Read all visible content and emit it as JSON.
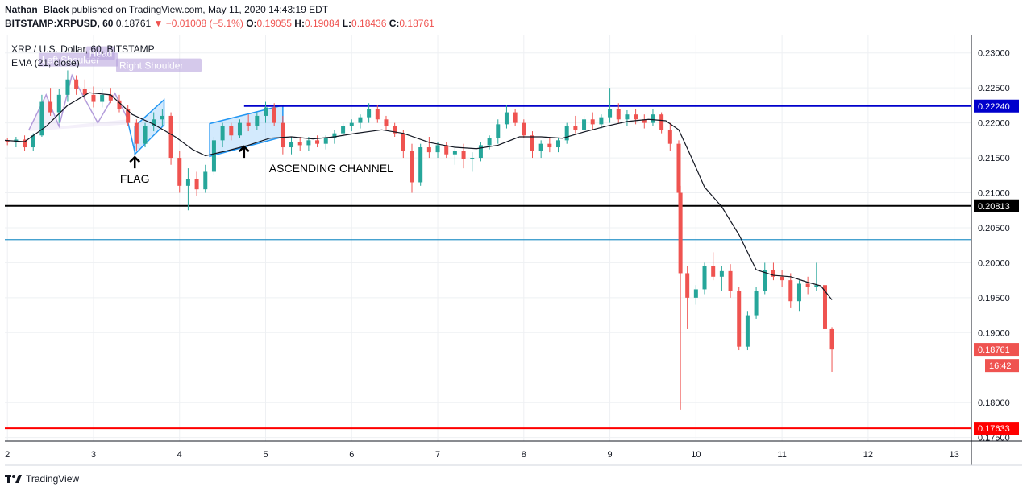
{
  "header": {
    "publisher": "Nathan_Black",
    "published_text": "published on TradingView.com, May 11, 2020 14:43:19 EDT",
    "symbol": "BITSTAMP:XRPUSD, 60",
    "last": "0.18761",
    "change": "−0.01008 (−5.1%)",
    "o_label": "O:",
    "o": "0.19055",
    "h_label": "H:",
    "h": "0.19084",
    "l_label": "L:",
    "l": "0.18436",
    "c_label": "C:",
    "c": "0.18761"
  },
  "legend": {
    "title": "XRP / U.S. Dollar, 60, BITSTAMP",
    "indicator": "EMA (21, close)"
  },
  "footer": {
    "brand": "TradingView"
  },
  "colors": {
    "up": "#26a69a",
    "down": "#ef5350",
    "blue_line": "#0000cc",
    "black_line": "#000000",
    "light_blue_line": "#2b95c9",
    "red_line": "#ff0000"
  },
  "chart_data": {
    "type": "candlestick",
    "x_ticks": [
      "2",
      "3",
      "4",
      "5",
      "6",
      "7",
      "8",
      "9",
      "10",
      "11",
      "12",
      "13"
    ],
    "y_ticks": [
      "0.23000",
      "0.22500",
      "0.22000",
      "0.21500",
      "0.21000",
      "0.20500",
      "0.20000",
      "0.19500",
      "0.19000",
      "0.18000",
      "0.17500"
    ],
    "ylim": [
      0.1745,
      0.2325
    ],
    "xlim": [
      1.97,
      13.2
    ],
    "grid": true,
    "horizontal_lines": [
      {
        "name": "resistance",
        "value": 0.2224,
        "label": "0.22240",
        "color": "#0000cc",
        "start_x": 4.75
      },
      {
        "name": "support-1",
        "value": 0.20813,
        "label": "0.20813",
        "color": "#000000",
        "start_x": 1.97
      },
      {
        "name": "support-2",
        "value": 0.2033,
        "label": "",
        "color": "#2b95c9",
        "start_x": 1.97
      },
      {
        "name": "support-3",
        "value": 0.17633,
        "label": "0.17633",
        "color": "#ff0000",
        "start_x": 1.97
      }
    ],
    "price_labels": [
      {
        "text": "0.18761",
        "value": 0.18761,
        "color": "#ef5350"
      },
      {
        "text": "16:42",
        "value": 0.1853,
        "color": "#ef5350"
      }
    ],
    "annotations": [
      {
        "text": "FLAG",
        "x": 3.52,
        "y": 0.2128
      },
      {
        "text": "ASCENDING CHANNEL",
        "x": 5.3,
        "y": 0.2143
      },
      {
        "text": "Left Shoulder",
        "x": 2.4,
        "y": 0.22863
      },
      {
        "text": "Head",
        "x": 2.95,
        "y": 0.22955
      },
      {
        "text": "Right Shoulder",
        "x": 3.3,
        "y": 0.22782
      }
    ],
    "ema_name": "EMA (21, close)",
    "ema": [
      [
        1.97,
        0.2175
      ],
      [
        2.2,
        0.2173
      ],
      [
        2.45,
        0.2195
      ],
      [
        2.7,
        0.2225
      ],
      [
        2.95,
        0.2243
      ],
      [
        3.2,
        0.224
      ],
      [
        3.45,
        0.2212
      ],
      [
        3.7,
        0.2198
      ],
      [
        3.95,
        0.218
      ],
      [
        4.15,
        0.2162
      ],
      [
        4.3,
        0.2153
      ],
      [
        4.55,
        0.216
      ],
      [
        4.8,
        0.2168
      ],
      [
        5.05,
        0.2178
      ],
      [
        5.3,
        0.218
      ],
      [
        5.55,
        0.2177
      ],
      [
        5.8,
        0.218
      ],
      [
        6.05,
        0.2185
      ],
      [
        6.35,
        0.219
      ],
      [
        6.6,
        0.2185
      ],
      [
        6.9,
        0.2172
      ],
      [
        7.2,
        0.2165
      ],
      [
        7.45,
        0.2163
      ],
      [
        7.7,
        0.2168
      ],
      [
        7.95,
        0.218
      ],
      [
        8.2,
        0.218
      ],
      [
        8.45,
        0.2178
      ],
      [
        8.7,
        0.2187
      ],
      [
        8.95,
        0.2195
      ],
      [
        9.2,
        0.2202
      ],
      [
        9.45,
        0.2205
      ],
      [
        9.65,
        0.2203
      ],
      [
        9.8,
        0.219
      ],
      [
        9.95,
        0.215
      ],
      [
        10.1,
        0.2108
      ],
      [
        10.3,
        0.208
      ],
      [
        10.5,
        0.204
      ],
      [
        10.7,
        0.199
      ],
      [
        10.9,
        0.1982
      ],
      [
        11.1,
        0.198
      ],
      [
        11.3,
        0.1972
      ],
      [
        11.45,
        0.1967
      ],
      [
        11.58,
        0.1947
      ]
    ],
    "candles": [
      [
        2.0,
        0.2175,
        0.2178,
        0.2168,
        0.2172
      ],
      [
        2.1,
        0.2172,
        0.218,
        0.2165,
        0.2176
      ],
      [
        2.2,
        0.2176,
        0.2182,
        0.216,
        0.2165
      ],
      [
        2.3,
        0.2165,
        0.2185,
        0.216,
        0.2182
      ],
      [
        2.4,
        0.2182,
        0.224,
        0.218,
        0.223
      ],
      [
        2.5,
        0.223,
        0.225,
        0.221,
        0.2215
      ],
      [
        2.6,
        0.2215,
        0.2248,
        0.22,
        0.224
      ],
      [
        2.7,
        0.224,
        0.2275,
        0.223,
        0.2262
      ],
      [
        2.8,
        0.2262,
        0.2268,
        0.224,
        0.2248
      ],
      [
        2.9,
        0.2248,
        0.2262,
        0.2232,
        0.224
      ],
      [
        3.0,
        0.224,
        0.2252,
        0.2222,
        0.223
      ],
      [
        3.1,
        0.223,
        0.2248,
        0.2222,
        0.224
      ],
      [
        3.2,
        0.224,
        0.225,
        0.2228,
        0.2232
      ],
      [
        3.3,
        0.2232,
        0.224,
        0.2215,
        0.222
      ],
      [
        3.4,
        0.222,
        0.2225,
        0.2195,
        0.22
      ],
      [
        3.5,
        0.22,
        0.2205,
        0.216,
        0.217
      ],
      [
        3.6,
        0.217,
        0.22,
        0.2165,
        0.2195
      ],
      [
        3.7,
        0.2195,
        0.2215,
        0.2188,
        0.2205
      ],
      [
        3.8,
        0.2205,
        0.222,
        0.2195,
        0.221
      ],
      [
        3.9,
        0.221,
        0.2215,
        0.214,
        0.215
      ],
      [
        4.0,
        0.215,
        0.216,
        0.21,
        0.211
      ],
      [
        4.1,
        0.211,
        0.2135,
        0.2075,
        0.212
      ],
      [
        4.2,
        0.212,
        0.213,
        0.2095,
        0.2105
      ],
      [
        4.3,
        0.2105,
        0.214,
        0.21,
        0.213
      ],
      [
        4.4,
        0.213,
        0.218,
        0.2125,
        0.2175
      ],
      [
        4.5,
        0.2175,
        0.22,
        0.2165,
        0.2195
      ],
      [
        4.6,
        0.2195,
        0.22,
        0.2175,
        0.2182
      ],
      [
        4.7,
        0.2182,
        0.2205,
        0.2178,
        0.22
      ],
      [
        4.8,
        0.22,
        0.2212,
        0.2188,
        0.2195
      ],
      [
        4.9,
        0.2195,
        0.2215,
        0.219,
        0.221
      ],
      [
        5.0,
        0.221,
        0.223,
        0.22,
        0.2222
      ],
      [
        5.1,
        0.2222,
        0.2228,
        0.2195,
        0.22
      ],
      [
        5.2,
        0.22,
        0.221,
        0.2155,
        0.2165
      ],
      [
        5.3,
        0.2165,
        0.218,
        0.2155,
        0.2172
      ],
      [
        5.4,
        0.2172,
        0.218,
        0.216,
        0.2168
      ],
      [
        5.5,
        0.2168,
        0.218,
        0.216,
        0.2175
      ],
      [
        5.6,
        0.2175,
        0.2182,
        0.2165,
        0.217
      ],
      [
        5.7,
        0.217,
        0.2182,
        0.2162,
        0.2178
      ],
      [
        5.8,
        0.2178,
        0.219,
        0.217,
        0.2185
      ],
      [
        5.9,
        0.2185,
        0.22,
        0.218,
        0.2195
      ],
      [
        6.0,
        0.2195,
        0.2205,
        0.2188,
        0.22
      ],
      [
        6.1,
        0.22,
        0.2212,
        0.2192,
        0.2208
      ],
      [
        6.2,
        0.2208,
        0.2228,
        0.22,
        0.222
      ],
      [
        6.3,
        0.222,
        0.2225,
        0.22,
        0.2205
      ],
      [
        6.4,
        0.2205,
        0.221,
        0.219,
        0.2195
      ],
      [
        6.5,
        0.2195,
        0.22,
        0.218,
        0.2185
      ],
      [
        6.6,
        0.2185,
        0.219,
        0.215,
        0.216
      ],
      [
        6.7,
        0.216,
        0.217,
        0.21,
        0.2115
      ],
      [
        6.8,
        0.2115,
        0.217,
        0.211,
        0.2165
      ],
      [
        6.9,
        0.2165,
        0.218,
        0.215,
        0.2158
      ],
      [
        7.0,
        0.2158,
        0.2172,
        0.215,
        0.2168
      ],
      [
        7.1,
        0.2168,
        0.2172,
        0.215,
        0.2155
      ],
      [
        7.2,
        0.2155,
        0.2168,
        0.214,
        0.216
      ],
      [
        7.3,
        0.216,
        0.217,
        0.2135,
        0.2148
      ],
      [
        7.4,
        0.2148,
        0.2158,
        0.213,
        0.215
      ],
      [
        7.5,
        0.215,
        0.2172,
        0.2145,
        0.2168
      ],
      [
        7.6,
        0.2168,
        0.2182,
        0.2162,
        0.2178
      ],
      [
        7.7,
        0.2178,
        0.2205,
        0.217,
        0.2198
      ],
      [
        7.8,
        0.2198,
        0.2225,
        0.2192,
        0.2215
      ],
      [
        7.9,
        0.2215,
        0.222,
        0.2195,
        0.22
      ],
      [
        8.0,
        0.22,
        0.2205,
        0.2178,
        0.2182
      ],
      [
        8.1,
        0.2182,
        0.2188,
        0.215,
        0.216
      ],
      [
        8.2,
        0.216,
        0.2175,
        0.215,
        0.217
      ],
      [
        8.3,
        0.217,
        0.2178,
        0.2158,
        0.2165
      ],
      [
        8.4,
        0.2165,
        0.2178,
        0.2158,
        0.2175
      ],
      [
        8.5,
        0.2175,
        0.22,
        0.217,
        0.2195
      ],
      [
        8.6,
        0.2195,
        0.221,
        0.2185,
        0.219
      ],
      [
        8.7,
        0.219,
        0.221,
        0.2185,
        0.2205
      ],
      [
        8.8,
        0.2205,
        0.2215,
        0.219,
        0.2198
      ],
      [
        8.9,
        0.2198,
        0.2212,
        0.2192,
        0.2208
      ],
      [
        9.0,
        0.2208,
        0.225,
        0.22,
        0.222
      ],
      [
        9.1,
        0.222,
        0.2228,
        0.22,
        0.2205
      ],
      [
        9.2,
        0.2205,
        0.2218,
        0.2195,
        0.2212
      ],
      [
        9.3,
        0.2212,
        0.222,
        0.2198,
        0.2205
      ],
      [
        9.4,
        0.2205,
        0.2212,
        0.2192,
        0.22
      ],
      [
        9.5,
        0.22,
        0.222,
        0.2195,
        0.2212
      ],
      [
        9.6,
        0.2212,
        0.2215,
        0.2185,
        0.219
      ],
      [
        9.7,
        0.219,
        0.22,
        0.216,
        0.217
      ],
      [
        9.8,
        0.217,
        0.2175,
        0.208,
        0.21
      ],
      [
        9.82,
        0.21,
        0.211,
        0.179,
        0.1985
      ],
      [
        9.9,
        0.1985,
        0.1995,
        0.1905,
        0.195
      ],
      [
        10.0,
        0.195,
        0.1968,
        0.194,
        0.1962
      ],
      [
        10.1,
        0.1962,
        0.2,
        0.1955,
        0.1995
      ],
      [
        10.2,
        0.1995,
        0.2015,
        0.1975,
        0.198
      ],
      [
        10.3,
        0.198,
        0.1995,
        0.196,
        0.1988
      ],
      [
        10.4,
        0.1988,
        0.1998,
        0.195,
        0.196
      ],
      [
        10.5,
        0.196,
        0.1965,
        0.1875,
        0.188
      ],
      [
        10.6,
        0.188,
        0.193,
        0.1875,
        0.1925
      ],
      [
        10.7,
        0.1925,
        0.1965,
        0.192,
        0.196
      ],
      [
        10.8,
        0.196,
        0.2,
        0.1955,
        0.199
      ],
      [
        10.9,
        0.199,
        0.2,
        0.1975,
        0.198
      ],
      [
        11.0,
        0.198,
        0.199,
        0.1965,
        0.1975
      ],
      [
        11.1,
        0.1975,
        0.1985,
        0.1935,
        0.1945
      ],
      [
        11.2,
        0.1945,
        0.1975,
        0.193,
        0.197
      ],
      [
        11.3,
        0.197,
        0.198,
        0.1955,
        0.1965
      ],
      [
        11.4,
        0.1965,
        0.2,
        0.196,
        0.1968
      ],
      [
        11.5,
        0.1968,
        0.1975,
        0.19,
        0.1905
      ],
      [
        11.58,
        0.1905,
        0.1908,
        0.1844,
        0.1876
      ]
    ]
  }
}
